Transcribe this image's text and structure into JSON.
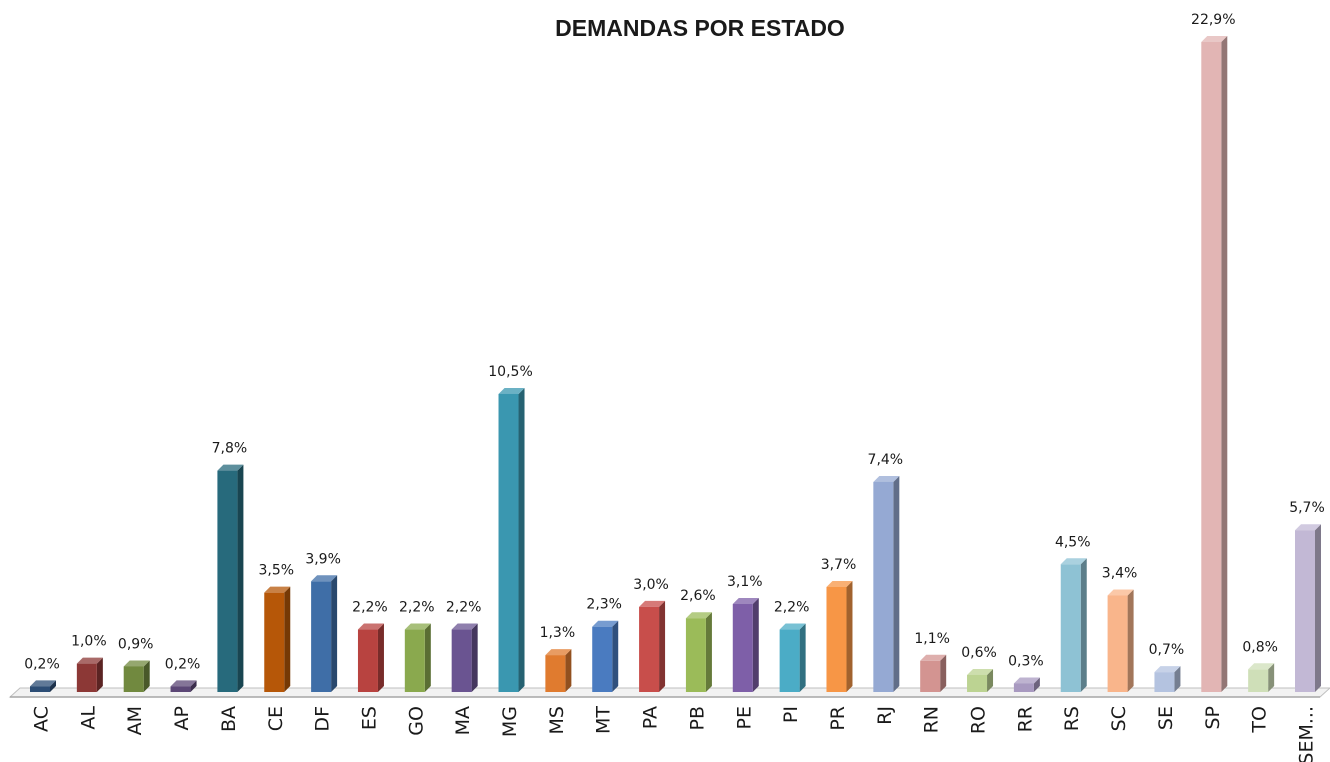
{
  "chart_data": {
    "type": "bar3d",
    "title": "DEMANDAS POR ESTADO",
    "categories": [
      "AC",
      "AL",
      "AM",
      "AP",
      "BA",
      "CE",
      "DF",
      "ES",
      "GO",
      "MA",
      "MG",
      "MS",
      "MT",
      "PA",
      "PB",
      "PE",
      "PI",
      "PR",
      "RJ",
      "RN",
      "RO",
      "RR",
      "RS",
      "SC",
      "SE",
      "SP",
      "TO",
      "SEM..."
    ],
    "values": [
      0.2,
      1.0,
      0.9,
      0.2,
      7.8,
      3.5,
      3.9,
      2.2,
      2.2,
      2.2,
      10.5,
      1.3,
      2.3,
      3.0,
      2.6,
      3.1,
      2.2,
      3.7,
      7.4,
      1.1,
      0.6,
      0.3,
      4.5,
      3.4,
      0.7,
      22.9,
      0.8,
      5.7
    ],
    "value_labels": [
      "0,2%",
      "1,0%",
      "0,9%",
      "0,2%",
      "7,8%",
      "3,5%",
      "3,9%",
      "2,2%",
      "2,2%",
      "2,2%",
      "10,5%",
      "1,3%",
      "2,3%",
      "3,0%",
      "2,6%",
      "3,1%",
      "2,2%",
      "3,7%",
      "7,4%",
      "1,1%",
      "0,6%",
      "0,3%",
      "4,5%",
      "3,4%",
      "0,7%",
      "22,9%",
      "0,8%",
      "5,7%"
    ],
    "colors": [
      "#2c4d75",
      "#8c3836",
      "#71893f",
      "#5c4776",
      "#276a7c",
      "#b65708",
      "#3f6ea7",
      "#b84340",
      "#8aa94e",
      "#6a5491",
      "#3a97b0",
      "#e07b2f",
      "#4a7bc0",
      "#c84e4b",
      "#9bbb59",
      "#7e5fa8",
      "#4bacc6",
      "#f79646",
      "#95a9d3",
      "#d39491",
      "#bcd392",
      "#a899c0",
      "#8ec2d4",
      "#f9b58b",
      "#b4c3e0",
      "#e2b5b4",
      "#cfdfb8",
      "#c2b8d5"
    ]
  }
}
